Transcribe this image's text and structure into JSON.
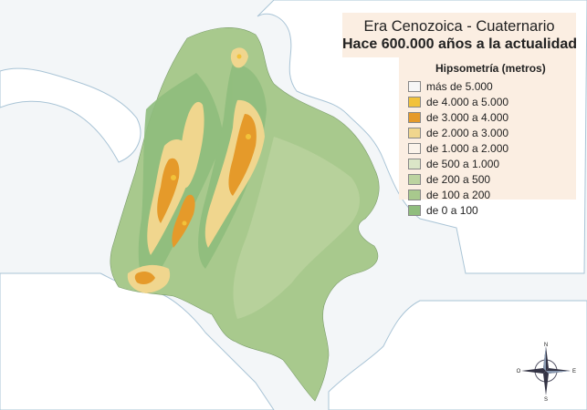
{
  "title": {
    "line1": "Era Cenozoica - Cuaternario",
    "line2": "Hace 600.000 años a la actualidad"
  },
  "legend": {
    "title": "Hipsometría (metros)",
    "items": [
      {
        "label": "más de 5.000",
        "color": "#f6f6f6"
      },
      {
        "label": "de 4.000 a 5.000",
        "color": "#f2c23a"
      },
      {
        "label": "de 3.000 a 4.000",
        "color": "#e59a2a"
      },
      {
        "label": "de 2.000 a 3.000",
        "color": "#f0d68e"
      },
      {
        "label": "de 1.000 a 2.000",
        "color": "#fbf3ea"
      },
      {
        "label": "de 500 a 1.000",
        "color": "#dbe6c7"
      },
      {
        "label": "de 200 a 500",
        "color": "#bcd3a0"
      },
      {
        "label": "de 100 a 200",
        "color": "#a8c98d"
      },
      {
        "label": "de 0 a 100",
        "color": "#8fbd7d"
      }
    ]
  },
  "compass": {
    "n": "N",
    "s": "S",
    "e": "E",
    "w": "O"
  },
  "colors": {
    "sea": "#f3f6f8",
    "neighbor_land": "#ffffff",
    "coast": "#a9c4d6"
  }
}
